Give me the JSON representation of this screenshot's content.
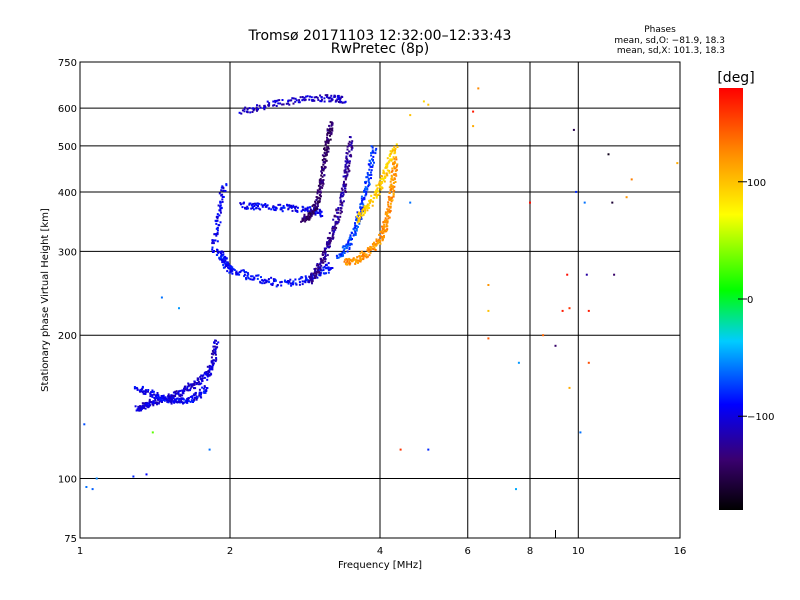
{
  "header": {
    "title": "Tromsø 20171103 12:32:00–12:33:43",
    "subtitle": "RwPretec (8p)"
  },
  "phases": {
    "label": "Phases",
    "o_line": "mean, sd,O: −81.9, 18.3",
    "x_line": "mean, sd,X: 101.3, 18.3"
  },
  "chart_data": {
    "type": "scatter",
    "xlabel": "Frequency [MHz]",
    "ylabel": "Stationary phase Virtual Height [km]",
    "x_scale": "log",
    "y_scale": "log",
    "xlim": [
      1,
      16
    ],
    "ylim": [
      75,
      750
    ],
    "x_ticks": [
      1,
      2,
      4,
      6,
      8,
      10,
      16
    ],
    "x_tick_labels": [
      "1",
      "2",
      "4",
      "6",
      "8",
      "10",
      "16"
    ],
    "x_minor_ticks": [
      9
    ],
    "y_ticks": [
      75,
      100,
      200,
      300,
      400,
      500,
      600,
      750
    ],
    "y_tick_labels": [
      "75",
      "100",
      "200",
      "300",
      "400",
      "500",
      "600",
      "750"
    ],
    "grid": true,
    "colorbar": {
      "label": "[deg]",
      "range": [
        -180,
        180
      ],
      "ticks": [
        100,
        0,
        -100
      ],
      "tick_labels": [
        "100",
        "0",
        "−100"
      ]
    },
    "traces": [
      {
        "phase": -105,
        "spread": 0.02,
        "points": [
          [
            1.3,
            140
          ],
          [
            1.35,
            142
          ],
          [
            1.4,
            145
          ],
          [
            1.5,
            148
          ],
          [
            1.6,
            152
          ],
          [
            1.7,
            158
          ],
          [
            1.8,
            165
          ],
          [
            1.85,
            175
          ],
          [
            1.88,
            195
          ]
        ]
      },
      {
        "phase": -95,
        "spread": 0.02,
        "points": [
          [
            1.3,
            155
          ],
          [
            1.4,
            150
          ],
          [
            1.5,
            146
          ],
          [
            1.6,
            145
          ],
          [
            1.7,
            148
          ],
          [
            1.8,
            155
          ]
        ]
      },
      {
        "phase": -95,
        "spread": 0.02,
        "points": [
          [
            1.85,
            300
          ],
          [
            1.9,
            355
          ],
          [
            1.95,
            420
          ]
        ]
      },
      {
        "phase": -90,
        "spread": 0.022,
        "points": [
          [
            1.9,
            300
          ],
          [
            1.95,
            285
          ],
          [
            2.0,
            275
          ],
          [
            2.2,
            265
          ],
          [
            2.5,
            257
          ],
          [
            2.8,
            260
          ],
          [
            3.0,
            268
          ],
          [
            3.2,
            280
          ]
        ]
      },
      {
        "phase": -95,
        "spread": 0.02,
        "points": [
          [
            2.1,
            375
          ],
          [
            2.3,
            372
          ],
          [
            2.6,
            370
          ],
          [
            2.9,
            366
          ],
          [
            3.05,
            360
          ]
        ]
      },
      {
        "phase": -125,
        "spread": 0.02,
        "points": [
          [
            2.9,
            260
          ],
          [
            3.0,
            275
          ],
          [
            3.1,
            295
          ],
          [
            3.2,
            325
          ],
          [
            3.3,
            360
          ],
          [
            3.4,
            410
          ],
          [
            3.45,
            460
          ],
          [
            3.5,
            520
          ]
        ]
      },
      {
        "phase": -140,
        "spread": 0.018,
        "points": [
          [
            2.8,
            350
          ],
          [
            2.9,
            357
          ],
          [
            3.0,
            380
          ],
          [
            3.05,
            420
          ],
          [
            3.1,
            470
          ],
          [
            3.15,
            520
          ],
          [
            3.2,
            560
          ]
        ]
      },
      {
        "phase": -75,
        "spread": 0.02,
        "points": [
          [
            3.3,
            290
          ],
          [
            3.45,
            310
          ],
          [
            3.6,
            340
          ],
          [
            3.7,
            380
          ],
          [
            3.8,
            430
          ],
          [
            3.9,
            500
          ]
        ]
      },
      {
        "phase": 120,
        "spread": 0.02,
        "points": [
          [
            3.4,
            285
          ],
          [
            3.6,
            288
          ],
          [
            3.8,
            300
          ],
          [
            4.0,
            315
          ],
          [
            4.1,
            340
          ],
          [
            4.2,
            380
          ],
          [
            4.25,
            420
          ],
          [
            4.3,
            470
          ]
        ]
      },
      {
        "phase": 95,
        "spread": 0.02,
        "points": [
          [
            3.6,
            350
          ],
          [
            3.8,
            375
          ],
          [
            4.0,
            410
          ],
          [
            4.15,
            450
          ],
          [
            4.3,
            500
          ]
        ]
      },
      {
        "phase": -110,
        "spread": 0.02,
        "points": [
          [
            2.1,
            590
          ],
          [
            2.4,
            610
          ],
          [
            2.8,
            625
          ],
          [
            3.2,
            630
          ],
          [
            3.4,
            625
          ]
        ]
      }
    ],
    "scatter_points": [
      {
        "x": 1.03,
        "y": 96,
        "phase": -60
      },
      {
        "x": 1.06,
        "y": 95,
        "phase": -65
      },
      {
        "x": 1.08,
        "y": 100,
        "phase": -55
      },
      {
        "x": 1.02,
        "y": 130,
        "phase": -70
      },
      {
        "x": 1.28,
        "y": 101,
        "phase": -80
      },
      {
        "x": 1.36,
        "y": 102,
        "phase": -90
      },
      {
        "x": 1.46,
        "y": 240,
        "phase": -60
      },
      {
        "x": 1.58,
        "y": 228,
        "phase": -50
      },
      {
        "x": 1.4,
        "y": 125,
        "phase": 30
      },
      {
        "x": 1.82,
        "y": 115,
        "phase": -60
      },
      {
        "x": 6.15,
        "y": 590,
        "phase": 170
      },
      {
        "x": 6.15,
        "y": 550,
        "phase": 110
      },
      {
        "x": 6.3,
        "y": 660,
        "phase": 125
      },
      {
        "x": 6.6,
        "y": 255,
        "phase": 120
      },
      {
        "x": 6.6,
        "y": 225,
        "phase": 100
      },
      {
        "x": 6.6,
        "y": 197,
        "phase": 145
      },
      {
        "x": 7.6,
        "y": 175,
        "phase": -50
      },
      {
        "x": 7.5,
        "y": 95,
        "phase": -45
      },
      {
        "x": 8.0,
        "y": 380,
        "phase": 175
      },
      {
        "x": 8.5,
        "y": 200,
        "phase": 140
      },
      {
        "x": 9.0,
        "y": 190,
        "phase": -140
      },
      {
        "x": 9.3,
        "y": 225,
        "phase": 170
      },
      {
        "x": 9.5,
        "y": 268,
        "phase": 175
      },
      {
        "x": 9.6,
        "y": 228,
        "phase": 160
      },
      {
        "x": 9.6,
        "y": 155,
        "phase": 110
      },
      {
        "x": 9.8,
        "y": 540,
        "phase": -150
      },
      {
        "x": 9.9,
        "y": 400,
        "phase": -80
      },
      {
        "x": 10.3,
        "y": 380,
        "phase": -60
      },
      {
        "x": 10.4,
        "y": 268,
        "phase": -120
      },
      {
        "x": 10.5,
        "y": 225,
        "phase": 170
      },
      {
        "x": 10.5,
        "y": 175,
        "phase": 150
      },
      {
        "x": 11.5,
        "y": 480,
        "phase": -170
      },
      {
        "x": 11.7,
        "y": 380,
        "phase": -160
      },
      {
        "x": 11.8,
        "y": 268,
        "phase": -140
      },
      {
        "x": 12.8,
        "y": 425,
        "phase": 130
      },
      {
        "x": 12.5,
        "y": 390,
        "phase": 120
      },
      {
        "x": 10.1,
        "y": 125,
        "phase": -60
      },
      {
        "x": 4.4,
        "y": 115,
        "phase": 160
      },
      {
        "x": 5.0,
        "y": 115,
        "phase": -80
      },
      {
        "x": 4.6,
        "y": 580,
        "phase": 100
      },
      {
        "x": 4.9,
        "y": 620,
        "phase": 90
      },
      {
        "x": 5.0,
        "y": 610,
        "phase": 100
      },
      {
        "x": 4.6,
        "y": 380,
        "phase": -60
      },
      {
        "x": 15.8,
        "y": 460,
        "phase": 110
      }
    ]
  }
}
